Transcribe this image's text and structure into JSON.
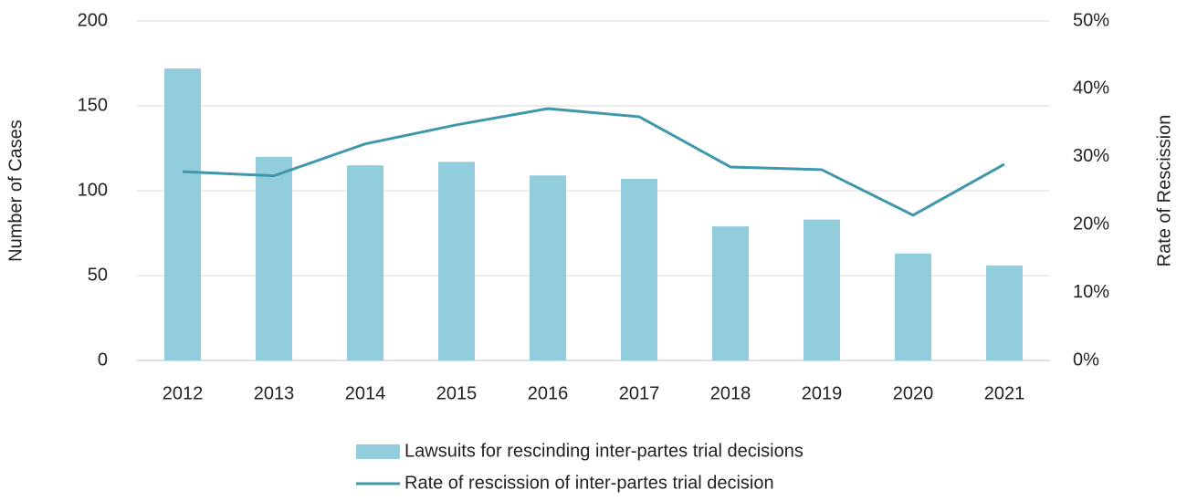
{
  "chart_data": {
    "type": "combo",
    "categories": [
      "2012",
      "2013",
      "2014",
      "2015",
      "2016",
      "2017",
      "2018",
      "2019",
      "2020",
      "2021"
    ],
    "series": [
      {
        "name": "Lawsuits for rescinding inter-partes trial decisions",
        "type": "bar",
        "color": "#92cddc",
        "values": [
          172,
          120,
          115,
          117,
          109,
          107,
          79,
          83,
          63,
          56
        ]
      },
      {
        "name": "Rate of rescission of inter-partes trial decision",
        "type": "line",
        "axis": "y2",
        "color": "#3f97ac",
        "values": [
          27.8,
          27.2,
          31.9,
          34.7,
          37.1,
          35.9,
          28.5,
          28.1,
          21.4,
          28.9
        ]
      }
    ],
    "ylabel": "Number of Cases",
    "y2label": "Rate of Rescission",
    "ylim": [
      0,
      200
    ],
    "yticks": [
      0,
      50,
      100,
      150,
      200
    ],
    "y2lim": [
      0,
      50
    ],
    "y2ticks": [
      {
        "value": 0,
        "label": "0%"
      },
      {
        "value": 10,
        "label": "10%"
      },
      {
        "value": 20,
        "label": "20%"
      },
      {
        "value": 30,
        "label": "30%"
      },
      {
        "value": 40,
        "label": "40%"
      },
      {
        "value": 50,
        "label": "50%"
      }
    ],
    "grid": true,
    "legend": "bottom"
  }
}
